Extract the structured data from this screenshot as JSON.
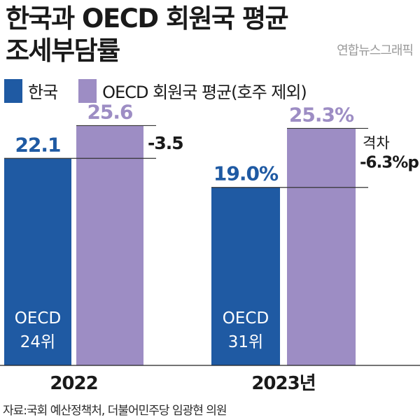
{
  "title_line1": "한국과 OECD 회원국 평균",
  "title_line2": "조세부담률",
  "credit": "연합뉴스그래픽",
  "source": "자료:국회 예산정책처, 더불어민주당 임광현 의원",
  "colors": {
    "korea": "#1f5aa3",
    "oecd": "#9d8dc4"
  },
  "chart_data": {
    "type": "bar",
    "categories": [
      "2022",
      "2023년"
    ],
    "series": [
      {
        "name": "한국",
        "values": [
          22.1,
          19.0
        ],
        "labels": [
          "22.1",
          "19.0%"
        ],
        "rank": [
          "OECD 24위",
          "OECD 31위"
        ]
      },
      {
        "name": "OECD 회원국 평균(호주 제외)",
        "values": [
          25.6,
          25.3
        ],
        "labels": [
          "25.6",
          "25.3%"
        ]
      }
    ],
    "gap_labels": [
      "-3.5",
      "격차 -6.3%p"
    ],
    "ylim": [
      0,
      27.5
    ]
  }
}
